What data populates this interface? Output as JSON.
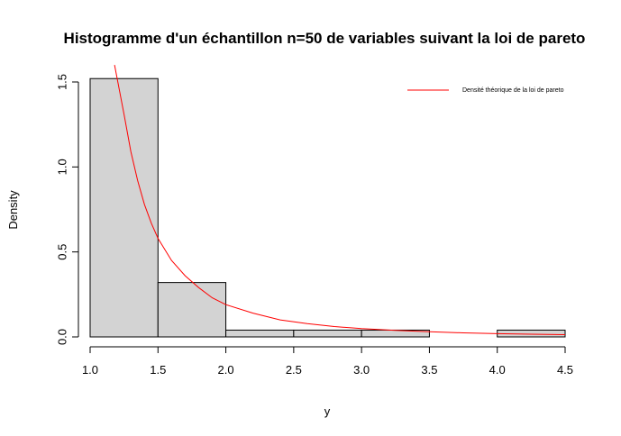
{
  "chart_data": {
    "type": "bar",
    "title": "Histogramme d'un échantillon n=50 de variables suivant la loi de pareto",
    "xlabel": "y",
    "ylabel": "Density",
    "xlim": [
      1.0,
      4.5
    ],
    "ylim": [
      0,
      1.5
    ],
    "x_ticks": [
      "1.0",
      "1.5",
      "2.0",
      "2.5",
      "3.0",
      "3.5",
      "4.0",
      "4.5"
    ],
    "y_ticks": [
      "0.0",
      "0.5",
      "1.0",
      "1.5"
    ],
    "bins": [
      {
        "from": 1.0,
        "to": 1.5,
        "density": 1.52
      },
      {
        "from": 1.5,
        "to": 2.0,
        "density": 0.32
      },
      {
        "from": 2.0,
        "to": 2.5,
        "density": 0.04
      },
      {
        "from": 2.5,
        "to": 3.0,
        "density": 0.04
      },
      {
        "from": 3.0,
        "to": 3.5,
        "density": 0.04
      },
      {
        "from": 3.5,
        "to": 4.0,
        "density": 0.0
      },
      {
        "from": 4.0,
        "to": 4.5,
        "density": 0.04
      }
    ],
    "bar_fill": "#d3d3d3",
    "bar_stroke": "#000000",
    "curve": {
      "name": "Densité théorique de la loi de pareto",
      "color": "#ff0000",
      "x": [
        1.18,
        1.25,
        1.3,
        1.35,
        1.4,
        1.45,
        1.5,
        1.6,
        1.7,
        1.8,
        1.9,
        2.0,
        2.2,
        2.4,
        2.6,
        2.8,
        3.0,
        3.25,
        3.5,
        3.75,
        4.0,
        4.25,
        4.5
      ],
      "y": [
        1.6,
        1.31,
        1.09,
        0.92,
        0.78,
        0.67,
        0.58,
        0.45,
        0.36,
        0.29,
        0.23,
        0.19,
        0.14,
        0.1,
        0.078,
        0.061,
        0.049,
        0.038,
        0.03,
        0.024,
        0.019,
        0.016,
        0.013
      ]
    },
    "legend_position": "top-right",
    "grid": false
  }
}
